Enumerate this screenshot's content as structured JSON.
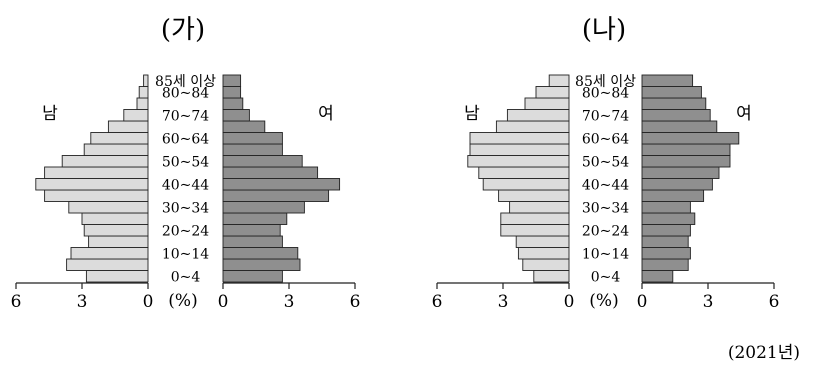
{
  "year_label": "(2021년)",
  "chart_data": [
    {
      "type": "bar",
      "orientation": "population-pyramid",
      "title": "(가)",
      "left_label": "남",
      "right_label": "여",
      "axis_unit": "(%)",
      "xlim": [
        0,
        6
      ],
      "xticks": [
        6,
        3,
        0
      ],
      "xticks_right": [
        0,
        3,
        6
      ],
      "categories": [
        "0~4",
        "5~9",
        "10~14",
        "15~19",
        "20~24",
        "25~29",
        "30~34",
        "35~39",
        "40~44",
        "45~49",
        "50~54",
        "55~59",
        "60~64",
        "65~69",
        "70~74",
        "75~79",
        "80~84",
        "85세 이상"
      ],
      "category_labels": [
        "0~4",
        "",
        "10~14",
        "",
        "20~24",
        "",
        "30~34",
        "",
        "40~44",
        "",
        "50~54",
        "",
        "60~64",
        "",
        "70~74",
        "",
        "80~84",
        "85세 이상"
      ],
      "series": [
        {
          "name": "남",
          "values": [
            2.8,
            3.7,
            3.5,
            2.7,
            2.9,
            3.0,
            3.6,
            4.7,
            5.1,
            4.7,
            3.9,
            2.9,
            2.6,
            1.8,
            1.1,
            0.5,
            0.4,
            0.2
          ]
        },
        {
          "name": "여",
          "values": [
            2.7,
            3.5,
            3.4,
            2.7,
            2.6,
            2.9,
            3.7,
            4.8,
            5.3,
            4.3,
            3.6,
            2.7,
            2.7,
            1.9,
            1.2,
            0.9,
            0.8,
            0.8
          ]
        }
      ]
    },
    {
      "type": "bar",
      "orientation": "population-pyramid",
      "title": "(나)",
      "left_label": "남",
      "right_label": "여",
      "axis_unit": "(%)",
      "xlim": [
        0,
        6
      ],
      "xticks": [
        6,
        3,
        0
      ],
      "xticks_right": [
        0,
        3,
        6
      ],
      "categories": [
        "0~4",
        "5~9",
        "10~14",
        "15~19",
        "20~24",
        "25~29",
        "30~34",
        "35~39",
        "40~44",
        "45~49",
        "50~54",
        "55~59",
        "60~64",
        "65~69",
        "70~74",
        "75~79",
        "80~84",
        "85세 이상"
      ],
      "category_labels": [
        "0~4",
        "",
        "10~14",
        "",
        "20~24",
        "",
        "30~34",
        "",
        "40~44",
        "",
        "50~54",
        "",
        "60~64",
        "",
        "70~74",
        "",
        "80~84",
        "85세 이상"
      ],
      "series": [
        {
          "name": "남",
          "values": [
            1.6,
            2.1,
            2.3,
            2.4,
            3.1,
            3.1,
            2.7,
            3.2,
            3.9,
            4.1,
            4.6,
            4.5,
            4.5,
            3.3,
            2.8,
            2.0,
            1.5,
            0.9
          ]
        },
        {
          "name": "여",
          "values": [
            1.4,
            2.1,
            2.2,
            2.1,
            2.2,
            2.4,
            2.2,
            2.8,
            3.2,
            3.5,
            4.0,
            4.0,
            4.4,
            3.4,
            3.1,
            2.9,
            2.7,
            2.3
          ]
        }
      ]
    }
  ]
}
